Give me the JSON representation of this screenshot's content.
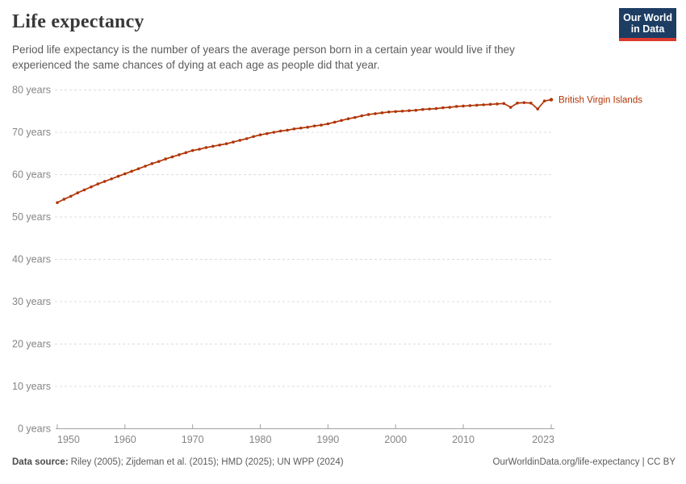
{
  "header": {
    "title": "Life expectancy",
    "subtitle": "Period life expectancy is the number of years the average person born in a certain year would live if they experienced the same chances of dying at each age as people did that year."
  },
  "logo": {
    "line1": "Our World",
    "line2": "in Data",
    "bg_color": "#1d3d63",
    "accent_color": "#dc3a2f"
  },
  "footer": {
    "source_label": "Data source:",
    "source_text": "Riley (2005); Zijdeman et al. (2015); HMD (2025); UN WPP (2024)",
    "site_link": "OurWorldinData.org/life-expectancy",
    "divider": " | ",
    "license": "CC BY"
  },
  "chart_data": {
    "type": "line",
    "title": "Life expectancy",
    "xlim": [
      1950,
      2023
    ],
    "ylim": [
      0,
      80
    ],
    "grid": "horizontal-dashed",
    "gridline_color": "#dcdcdc",
    "axis_color": "#a1a1a1",
    "tick_label_color": "#858585",
    "legend_position": "end-of-line-label",
    "yticks": [
      {
        "value": 0,
        "label": "0 years"
      },
      {
        "value": 10,
        "label": "10 years"
      },
      {
        "value": 20,
        "label": "20 years"
      },
      {
        "value": 30,
        "label": "30 years"
      },
      {
        "value": 40,
        "label": "40 years"
      },
      {
        "value": 50,
        "label": "50 years"
      },
      {
        "value": 60,
        "label": "60 years"
      },
      {
        "value": 70,
        "label": "70 years"
      },
      {
        "value": 80,
        "label": "80 years"
      }
    ],
    "xticks": [
      {
        "value": 1950,
        "label": "1950",
        "align": "start"
      },
      {
        "value": 1960,
        "label": "1960",
        "align": "middle"
      },
      {
        "value": 1970,
        "label": "1970",
        "align": "middle"
      },
      {
        "value": 1980,
        "label": "1980",
        "align": "middle"
      },
      {
        "value": 1990,
        "label": "1990",
        "align": "middle"
      },
      {
        "value": 2000,
        "label": "2000",
        "align": "middle"
      },
      {
        "value": 2010,
        "label": "2010",
        "align": "middle"
      },
      {
        "value": 2023,
        "label": "2023",
        "align": "end"
      }
    ],
    "series": [
      {
        "name": "British Virgin Islands",
        "color": "#B13507",
        "years": [
          1950,
          1951,
          1952,
          1953,
          1954,
          1955,
          1956,
          1957,
          1958,
          1959,
          1960,
          1961,
          1962,
          1963,
          1964,
          1965,
          1966,
          1967,
          1968,
          1969,
          1970,
          1971,
          1972,
          1973,
          1974,
          1975,
          1976,
          1977,
          1978,
          1979,
          1980,
          1981,
          1982,
          1983,
          1984,
          1985,
          1986,
          1987,
          1988,
          1989,
          1990,
          1991,
          1992,
          1993,
          1994,
          1995,
          1996,
          1997,
          1998,
          1999,
          2000,
          2001,
          2002,
          2003,
          2004,
          2005,
          2006,
          2007,
          2008,
          2009,
          2010,
          2011,
          2012,
          2013,
          2014,
          2015,
          2016,
          2017,
          2018,
          2019,
          2020,
          2021,
          2022,
          2023
        ],
        "values": [
          53.4,
          54.2,
          54.9,
          55.7,
          56.4,
          57.1,
          57.8,
          58.4,
          59.0,
          59.6,
          60.2,
          60.8,
          61.4,
          62.0,
          62.6,
          63.1,
          63.7,
          64.2,
          64.7,
          65.2,
          65.7,
          66.0,
          66.4,
          66.7,
          67.0,
          67.3,
          67.7,
          68.1,
          68.5,
          69.0,
          69.4,
          69.7,
          70.0,
          70.3,
          70.5,
          70.8,
          71.0,
          71.2,
          71.5,
          71.7,
          72.0,
          72.4,
          72.8,
          73.2,
          73.5,
          73.9,
          74.2,
          74.4,
          74.6,
          74.8,
          74.9,
          75.0,
          75.1,
          75.2,
          75.4,
          75.5,
          75.6,
          75.8,
          75.9,
          76.1,
          76.2,
          76.3,
          76.4,
          76.5,
          76.6,
          76.7,
          76.8,
          75.9,
          76.9,
          77.0,
          76.9,
          75.5,
          77.4,
          77.7
        ]
      }
    ]
  }
}
